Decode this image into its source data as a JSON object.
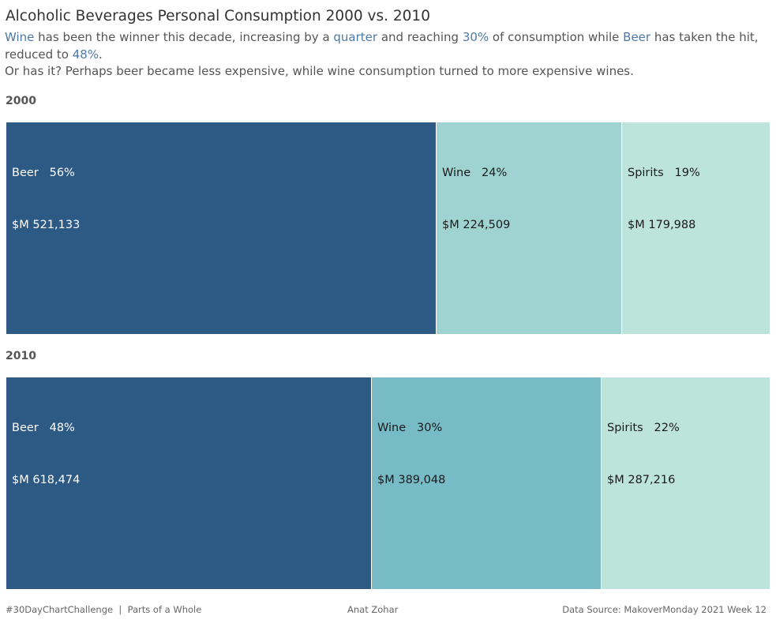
{
  "title": "Alcoholic Beverages Personal Consumption 2000 vs. 2010",
  "subtitle": {
    "w1": "Wine",
    "t1": " has been the winner this decade, increasing by a ",
    "w2": "quarter",
    "t2": " and reaching ",
    "w3": "30%",
    "t3": " of consumption while ",
    "w4": "Beer",
    "t4": " has taken the hit, reduced to ",
    "w5": "48%",
    "t5": ".",
    "line2": "Or has it? Perhaps beer became less expensive, while wine consumption turned to more expensive wines."
  },
  "colors": {
    "beer": "#2d5985",
    "wine_2000": "#9fd3d1",
    "wine_2010": "#76bbc5",
    "spirits": "#bde4da",
    "accent": "#4e79a7"
  },
  "chart_data": {
    "type": "treemap",
    "groups": [
      {
        "year": "2000",
        "items": [
          {
            "name": "Beer",
            "pct": "56%",
            "value_label": "$M 521,133",
            "value": 521133
          },
          {
            "name": "Wine",
            "pct": "24%",
            "value_label": "$M 224,509",
            "value": 224509
          },
          {
            "name": "Spirits",
            "pct": "19%",
            "value_label": "$M 179,988",
            "value": 179988
          }
        ]
      },
      {
        "year": "2010",
        "items": [
          {
            "name": "Beer",
            "pct": "48%",
            "value_label": "$M 618,474",
            "value": 618474
          },
          {
            "name": "Wine",
            "pct": "30%",
            "value_label": "$M 389,048",
            "value": 389048
          },
          {
            "name": "Spirits",
            "pct": "22%",
            "value_label": "$M 287,216",
            "value": 287216
          }
        ]
      }
    ]
  },
  "footer": {
    "left": "#30DayChartChallenge  |  Parts of a Whole",
    "center": "Anat Zohar",
    "right": "Data Source: MakoverMonday 2021 Week 12"
  }
}
